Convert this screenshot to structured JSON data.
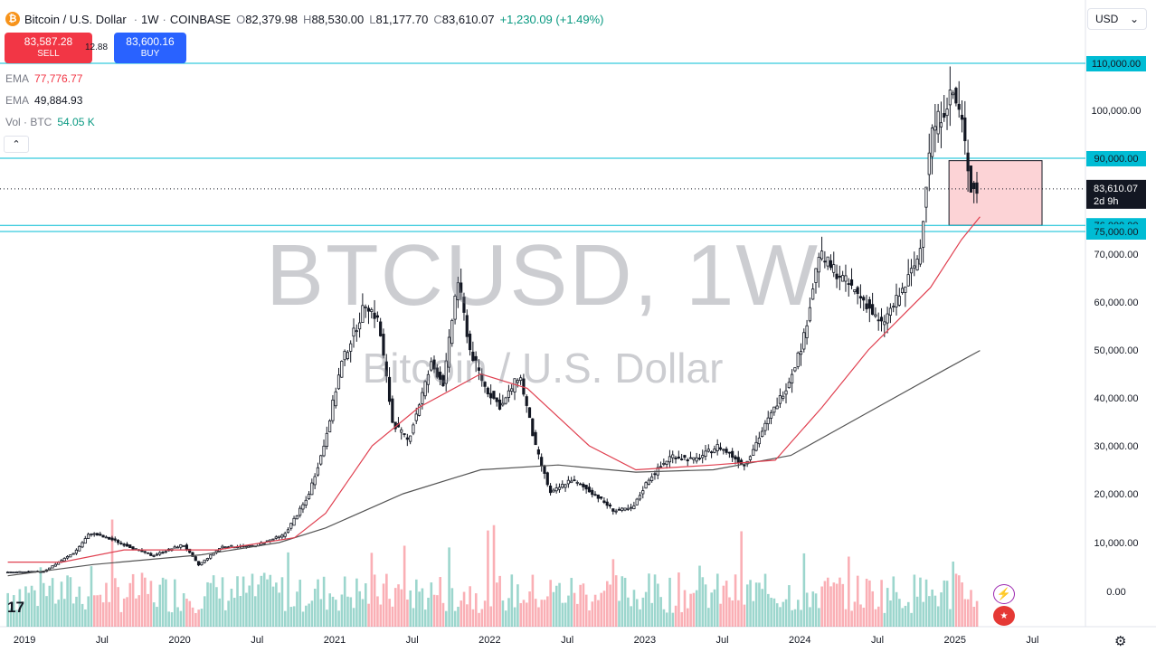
{
  "header": {
    "symbol_title": "Bitcoin / U.S. Dollar",
    "interval": "1W",
    "exchange": "COINBASE",
    "btc_symbol": "₿",
    "ohlc": [
      {
        "k": "O",
        "v": "82,379.98"
      },
      {
        "k": "H",
        "v": "88,530.00"
      },
      {
        "k": "L",
        "v": "81,177.70"
      },
      {
        "k": "C",
        "v": "83,610.07"
      }
    ],
    "change": "+1,230.09 (+1.49%)"
  },
  "currency": {
    "label": "USD",
    "chevron": "⌄"
  },
  "trade": {
    "sell_price": "83,587.28",
    "sell_label": "SELL",
    "buy_price": "83,600.16",
    "buy_label": "BUY",
    "spread": "12.88"
  },
  "indicators": [
    {
      "name": "EMA",
      "value": "77,776.77",
      "color": "#f23645"
    },
    {
      "name": "EMA",
      "value": "49,884.93",
      "color": "#131722"
    },
    {
      "name": "Vol · BTC",
      "value": "54.05 K",
      "color": "#089981"
    }
  ],
  "collapse_icon": "⌃",
  "watermark": {
    "line1": "BTCUSD, 1W",
    "line2": "Bitcoin / U.S. Dollar"
  },
  "logo_text": "17",
  "chart_data": {
    "type": "candlestick",
    "interval": "weekly",
    "y_axis": {
      "ticks": [
        "100,000.00",
        "70,000.00",
        "60,000.00",
        "50,000.00",
        "40,000.00",
        "30,000.00",
        "20,000.00",
        "10,000.00",
        "0.00"
      ],
      "tick_values": [
        100000,
        70000,
        60000,
        50000,
        40000,
        30000,
        20000,
        10000,
        0
      ],
      "range": [
        0,
        112000
      ]
    },
    "x_axis": {
      "labels": [
        "2019",
        "Jul",
        "2020",
        "Jul",
        "2021",
        "Jul",
        "2022",
        "Jul",
        "2023",
        "Jul",
        "2024",
        "Jul",
        "2025",
        "Jul"
      ],
      "label_dates": [
        2019.0,
        2019.5,
        2020.0,
        2020.5,
        2021.0,
        2021.5,
        2022.0,
        2022.5,
        2023.0,
        2023.5,
        2024.0,
        2024.5,
        2025.0,
        2025.5
      ]
    },
    "horizontal_lines": [
      {
        "value": 110000,
        "label": "110,000.00",
        "color": "#00bcd4"
      },
      {
        "value": 90000,
        "label": "90,000.00",
        "color": "#00bcd4"
      },
      {
        "value": 76000,
        "label": "76,000.00",
        "color": "#00bcd4"
      },
      {
        "value": 75000,
        "label": "75,000.00",
        "color": "#00bcd4"
      }
    ],
    "current_price": {
      "value": 83610.07,
      "label": "83,610.07",
      "countdown": "2d 9h"
    },
    "box": {
      "from": 2025.02,
      "to": 2025.62,
      "top": 89500,
      "bottom": 76000,
      "color": "#f7c1c5"
    },
    "price_keypoints": [
      [
        2018.95,
        3900
      ],
      [
        2019.2,
        4100
      ],
      [
        2019.4,
        8000
      ],
      [
        2019.5,
        12000
      ],
      [
        2019.65,
        10500
      ],
      [
        2019.9,
        7300
      ],
      [
        2020.1,
        9600
      ],
      [
        2020.2,
        5400
      ],
      [
        2020.35,
        9200
      ],
      [
        2020.55,
        9300
      ],
      [
        2020.75,
        11500
      ],
      [
        2020.9,
        19000
      ],
      [
        2021.0,
        29000
      ],
      [
        2021.12,
        47000
      ],
      [
        2021.28,
        60000
      ],
      [
        2021.36,
        56000
      ],
      [
        2021.45,
        35000
      ],
      [
        2021.55,
        31000
      ],
      [
        2021.7,
        47000
      ],
      [
        2021.78,
        43000
      ],
      [
        2021.87,
        65000
      ],
      [
        2021.95,
        50000
      ],
      [
        2022.05,
        42000
      ],
      [
        2022.15,
        38000
      ],
      [
        2022.27,
        45000
      ],
      [
        2022.37,
        30000
      ],
      [
        2022.47,
        20000
      ],
      [
        2022.6,
        23000
      ],
      [
        2022.75,
        20000
      ],
      [
        2022.88,
        16500
      ],
      [
        2023.0,
        17000
      ],
      [
        2023.1,
        23000
      ],
      [
        2023.25,
        28000
      ],
      [
        2023.4,
        27000
      ],
      [
        2023.55,
        30000
      ],
      [
        2023.72,
        26000
      ],
      [
        2023.85,
        34000
      ],
      [
        2024.0,
        43000
      ],
      [
        2024.1,
        52000
      ],
      [
        2024.2,
        70000
      ],
      [
        2024.35,
        65000
      ],
      [
        2024.5,
        60000
      ],
      [
        2024.6,
        55000
      ],
      [
        2024.75,
        63000
      ],
      [
        2024.85,
        70000
      ],
      [
        2024.92,
        95000
      ],
      [
        2025.0,
        100000
      ],
      [
        2025.06,
        104000
      ],
      [
        2025.12,
        98000
      ],
      [
        2025.18,
        84000
      ],
      [
        2025.21,
        83600
      ]
    ],
    "ema_long_keypoints": [
      [
        2018.95,
        3200
      ],
      [
        2019.5,
        5500
      ],
      [
        2020.2,
        7500
      ],
      [
        2020.7,
        10000
      ],
      [
        2021.0,
        13000
      ],
      [
        2021.5,
        20000
      ],
      [
        2022.0,
        25000
      ],
      [
        2022.5,
        26000
      ],
      [
        2023.0,
        24500
      ],
      [
        2023.5,
        25000
      ],
      [
        2024.0,
        28000
      ],
      [
        2024.5,
        37000
      ],
      [
        2025.0,
        46000
      ],
      [
        2025.22,
        49885
      ]
    ],
    "ema_short_keypoints": [
      [
        2018.95,
        6000
      ],
      [
        2019.3,
        6000
      ],
      [
        2019.7,
        8500
      ],
      [
        2020.3,
        8500
      ],
      [
        2020.8,
        11000
      ],
      [
        2021.0,
        16000
      ],
      [
        2021.3,
        30000
      ],
      [
        2021.6,
        38000
      ],
      [
        2022.0,
        45000
      ],
      [
        2022.3,
        42000
      ],
      [
        2022.7,
        30000
      ],
      [
        2023.0,
        25000
      ],
      [
        2023.5,
        26000
      ],
      [
        2023.9,
        27000
      ],
      [
        2024.2,
        38000
      ],
      [
        2024.5,
        50000
      ],
      [
        2024.9,
        63000
      ],
      [
        2025.1,
        73000
      ],
      [
        2025.22,
        77777
      ]
    ]
  }
}
